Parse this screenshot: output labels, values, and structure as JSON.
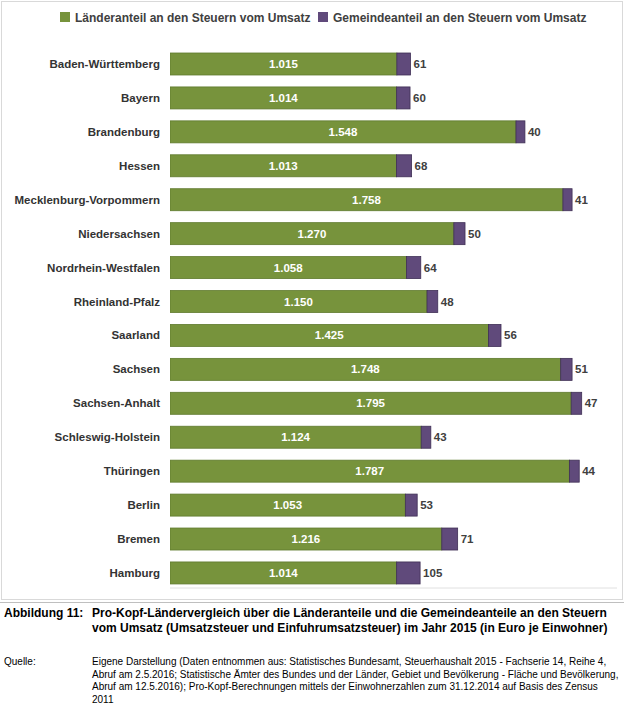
{
  "chart_data": {
    "type": "bar",
    "orientation": "horizontal",
    "stacked": true,
    "data_labels": true,
    "tick_labels": "y",
    "legend": "top",
    "grid": false,
    "figure_label": "Abbildung 11:",
    "title": "Pro-Kopf-Ländervergleich über die Länderanteile und die Gemeindeanteile an den Steuern vom Umsatz (Umsatzsteuer und Einfuhrumsatzsteuer) im Jahr 2015 (in Euro je Einwohner)",
    "source_label": "Quelle:",
    "source": "Eigene Darstellung (Daten entnommen aus: Statistisches Bundesamt, Steuerhaushalt 2015 - Fachserie 14, Reihe 4, Abruf am 2.5.2016; Statistische Ämter des Bundes und der Länder, Gebiet und Bevölkerung - Fläche und Bevölkerung, Abruf am 12.5.2016); Pro-Kopf-Berechnungen mittels der Einwohnerzahlen zum 31.12.2014 auf Basis des Zensus 2011",
    "categories": [
      "Baden-Württemberg",
      "Bayern",
      "Brandenburg",
      "Hessen",
      "Mecklenburg-Vorpommern",
      "Niedersachsen",
      "Nordrhein-Westfalen",
      "Rheinland-Pfalz",
      "Saarland",
      "Sachsen",
      "Sachsen-Anhalt",
      "Schleswig-Holstein",
      "Thüringen",
      "Berlin",
      "Bremen",
      "Hamburg"
    ],
    "xlim": [
      0,
      2000
    ],
    "xticks": [],
    "series": [
      {
        "name": "Länderanteil an den Steuern vom Umsatz",
        "color": "#77933c",
        "values": [
          1015,
          1014,
          1548,
          1013,
          1758,
          1270,
          1058,
          1150,
          1425,
          1748,
          1795,
          1124,
          1787,
          1053,
          1216,
          1014
        ],
        "value_labels": [
          "1.015",
          "1.014",
          "1.548",
          "1.013",
          "1.758",
          "1.270",
          "1.058",
          "1.150",
          "1.425",
          "1.748",
          "1.795",
          "1.124",
          "1.787",
          "1.053",
          "1.216",
          "1.014"
        ]
      },
      {
        "name": "Gemeindeanteil an den Steuern vom Umsatz",
        "color": "#604a7b",
        "values": [
          61,
          60,
          40,
          68,
          41,
          50,
          64,
          48,
          56,
          51,
          47,
          43,
          44,
          53,
          71,
          105
        ]
      }
    ]
  }
}
